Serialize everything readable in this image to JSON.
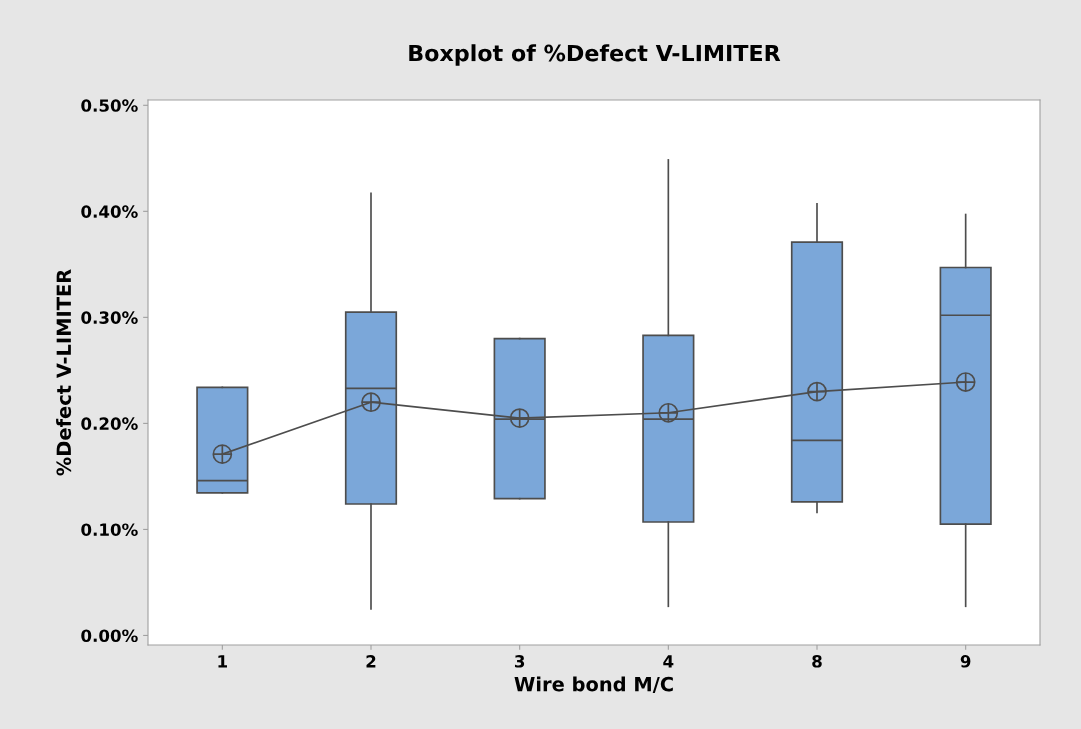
{
  "chart_data": {
    "type": "box",
    "title": "Boxplot of %Defect V-LIMITER",
    "xlabel": "Wire bond M/C",
    "ylabel": "%Defect V-LIMITER",
    "categories": [
      "1",
      "2",
      "3",
      "4",
      "8",
      "9"
    ],
    "color": "#7ba7d9",
    "boxes": [
      {
        "low": 0.1345,
        "q1": 0.1345,
        "median": 0.146,
        "q3": 0.234,
        "high": 0.234,
        "mean": 0.171
      },
      {
        "low": 0.025,
        "q1": 0.124,
        "median": 0.233,
        "q3": 0.305,
        "high": 0.417,
        "mean": 0.22
      },
      {
        "low": 0.129,
        "q1": 0.129,
        "median": 0.204,
        "q3": 0.28,
        "high": 0.28,
        "mean": 0.205
      },
      {
        "low": 0.0275,
        "q1": 0.107,
        "median": 0.204,
        "q3": 0.283,
        "high": 0.4485,
        "mean": 0.21
      },
      {
        "low": 0.116,
        "q1": 0.126,
        "median": 0.184,
        "q3": 0.371,
        "high": 0.407,
        "mean": 0.23
      },
      {
        "low": 0.0275,
        "q1": 0.105,
        "median": 0.302,
        "q3": 0.347,
        "high": 0.397,
        "mean": 0.239
      }
    ],
    "series": [
      {
        "type": "line",
        "color": "#4d4d4d",
        "x": [
          "1",
          "2",
          "3",
          "4",
          "8",
          "9"
        ],
        "values": [
          0.171,
          0.22,
          0.205,
          0.21,
          0.23,
          0.239
        ]
      }
    ],
    "ylim": [
      -0.009,
      0.505
    ],
    "yticks": [
      {
        "value": 0,
        "label": "0.00%"
      },
      {
        "value": 0.1,
        "label": "0.10%"
      },
      {
        "value": 0.2,
        "label": "0.20%"
      },
      {
        "value": 0.3,
        "label": "0.30%"
      },
      {
        "value": 0.4,
        "label": "0.40%"
      },
      {
        "value": 0.5,
        "label": "0.50%"
      }
    ],
    "grid": false,
    "legend": false
  }
}
